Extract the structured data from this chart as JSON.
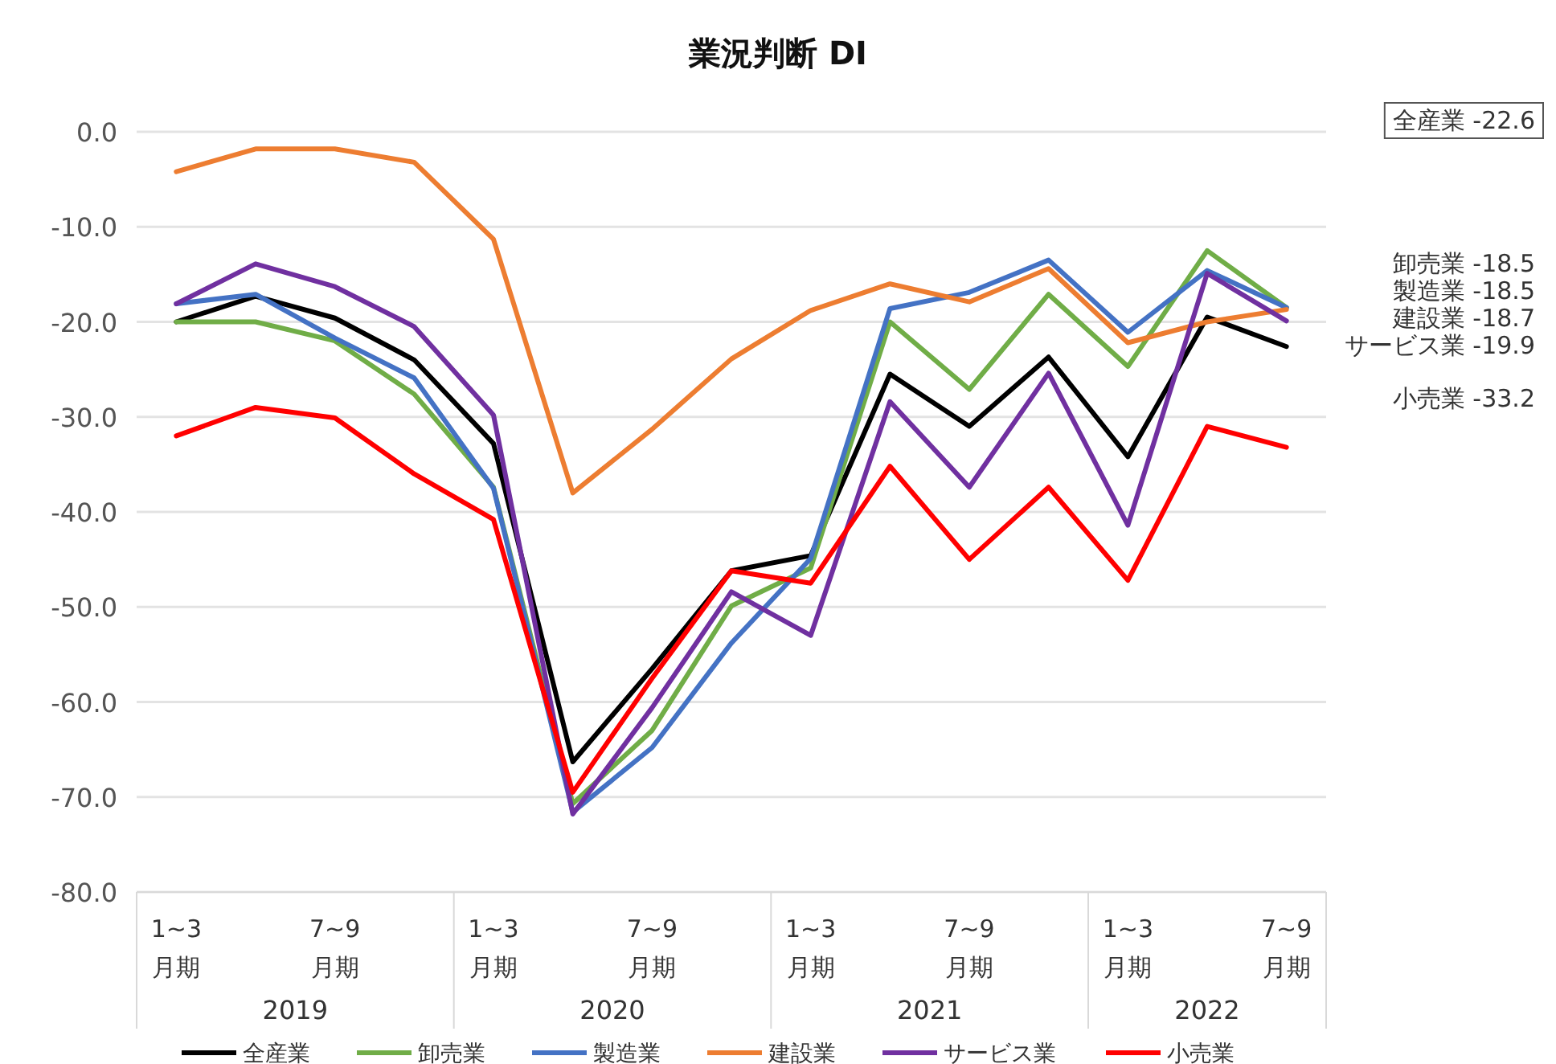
{
  "chart_data": {
    "type": "line",
    "title": "業況判断 DI",
    "categories": [
      "1~3\n月期",
      null,
      "7~9\n月期",
      null,
      "1~3\n月期",
      null,
      "7~9\n月期",
      null,
      "1~3\n月期",
      null,
      "7~9\n月期",
      null,
      "1~3\n月期",
      null,
      "7~9\n月期"
    ],
    "series": [
      {
        "name": "全産業",
        "color": "#000000",
        "values": [
          -20.0,
          -17.3,
          -19.6,
          -24.0,
          -32.8,
          -66.3,
          -56.5,
          -46.2,
          -44.6,
          -25.5,
          -31.0,
          -23.7,
          -34.2,
          -19.5,
          -22.6
        ]
      },
      {
        "name": "卸売業",
        "color": "#70ad47",
        "values": [
          -20.0,
          -20.0,
          -22.0,
          -27.6,
          -37.4,
          -70.7,
          -63.0,
          -49.9,
          -45.9,
          -20.0,
          -27.1,
          -17.1,
          -24.7,
          -12.5,
          -18.5
        ]
      },
      {
        "name": "製造業",
        "color": "#4472c4",
        "values": [
          -18.1,
          -17.1,
          -21.7,
          -25.9,
          -37.5,
          -71.6,
          -64.8,
          -53.8,
          -44.9,
          -18.6,
          -16.9,
          -13.5,
          -21.1,
          -14.6,
          -18.5
        ]
      },
      {
        "name": "建設業",
        "color": "#ed7d31",
        "values": [
          -4.2,
          -1.8,
          -1.8,
          -3.2,
          -11.3,
          -38.0,
          -31.3,
          -23.9,
          -18.8,
          -16.0,
          -17.9,
          -14.4,
          -22.2,
          -20.0,
          -18.7
        ]
      },
      {
        "name": "サービス業",
        "color": "#7030a0",
        "values": [
          -18.1,
          -13.9,
          -16.3,
          -20.5,
          -29.8,
          -71.8,
          -60.6,
          -48.4,
          -53.0,
          -28.4,
          -37.4,
          -25.4,
          -41.4,
          -14.9,
          -19.9
        ]
      },
      {
        "name": "小売業",
        "color": "#ff0000",
        "values": [
          -32.0,
          -29.0,
          -30.1,
          -36.0,
          -40.8,
          -69.5,
          -57.5,
          -46.2,
          -47.5,
          -35.2,
          -45.0,
          -37.4,
          -47.2,
          -31.0,
          -33.2
        ]
      }
    ],
    "ylim": [
      -80,
      0
    ],
    "yticks": [
      {
        "value": 0,
        "label": "0.0"
      },
      {
        "value": -10,
        "label": "-10.0"
      },
      {
        "value": -20,
        "label": "-20.0"
      },
      {
        "value": -30,
        "label": "-30.0"
      },
      {
        "value": -40,
        "label": "-40.0"
      },
      {
        "value": -50,
        "label": "-50.0"
      },
      {
        "value": -60,
        "label": "-60.0"
      },
      {
        "value": -70,
        "label": "-70.0"
      },
      {
        "value": -80,
        "label": "-80.0"
      }
    ],
    "grid": "y",
    "legend": "bottom",
    "marker": "none",
    "line_style": "solid",
    "annotations": [
      "2019",
      "2020",
      "2021",
      "2022",
      "全産業 -22.6",
      "卸売業 -18.5",
      "製造業 -18.5",
      "建設業 -18.7",
      "サービス業 -19.9",
      "小売業 -33.2"
    ]
  }
}
